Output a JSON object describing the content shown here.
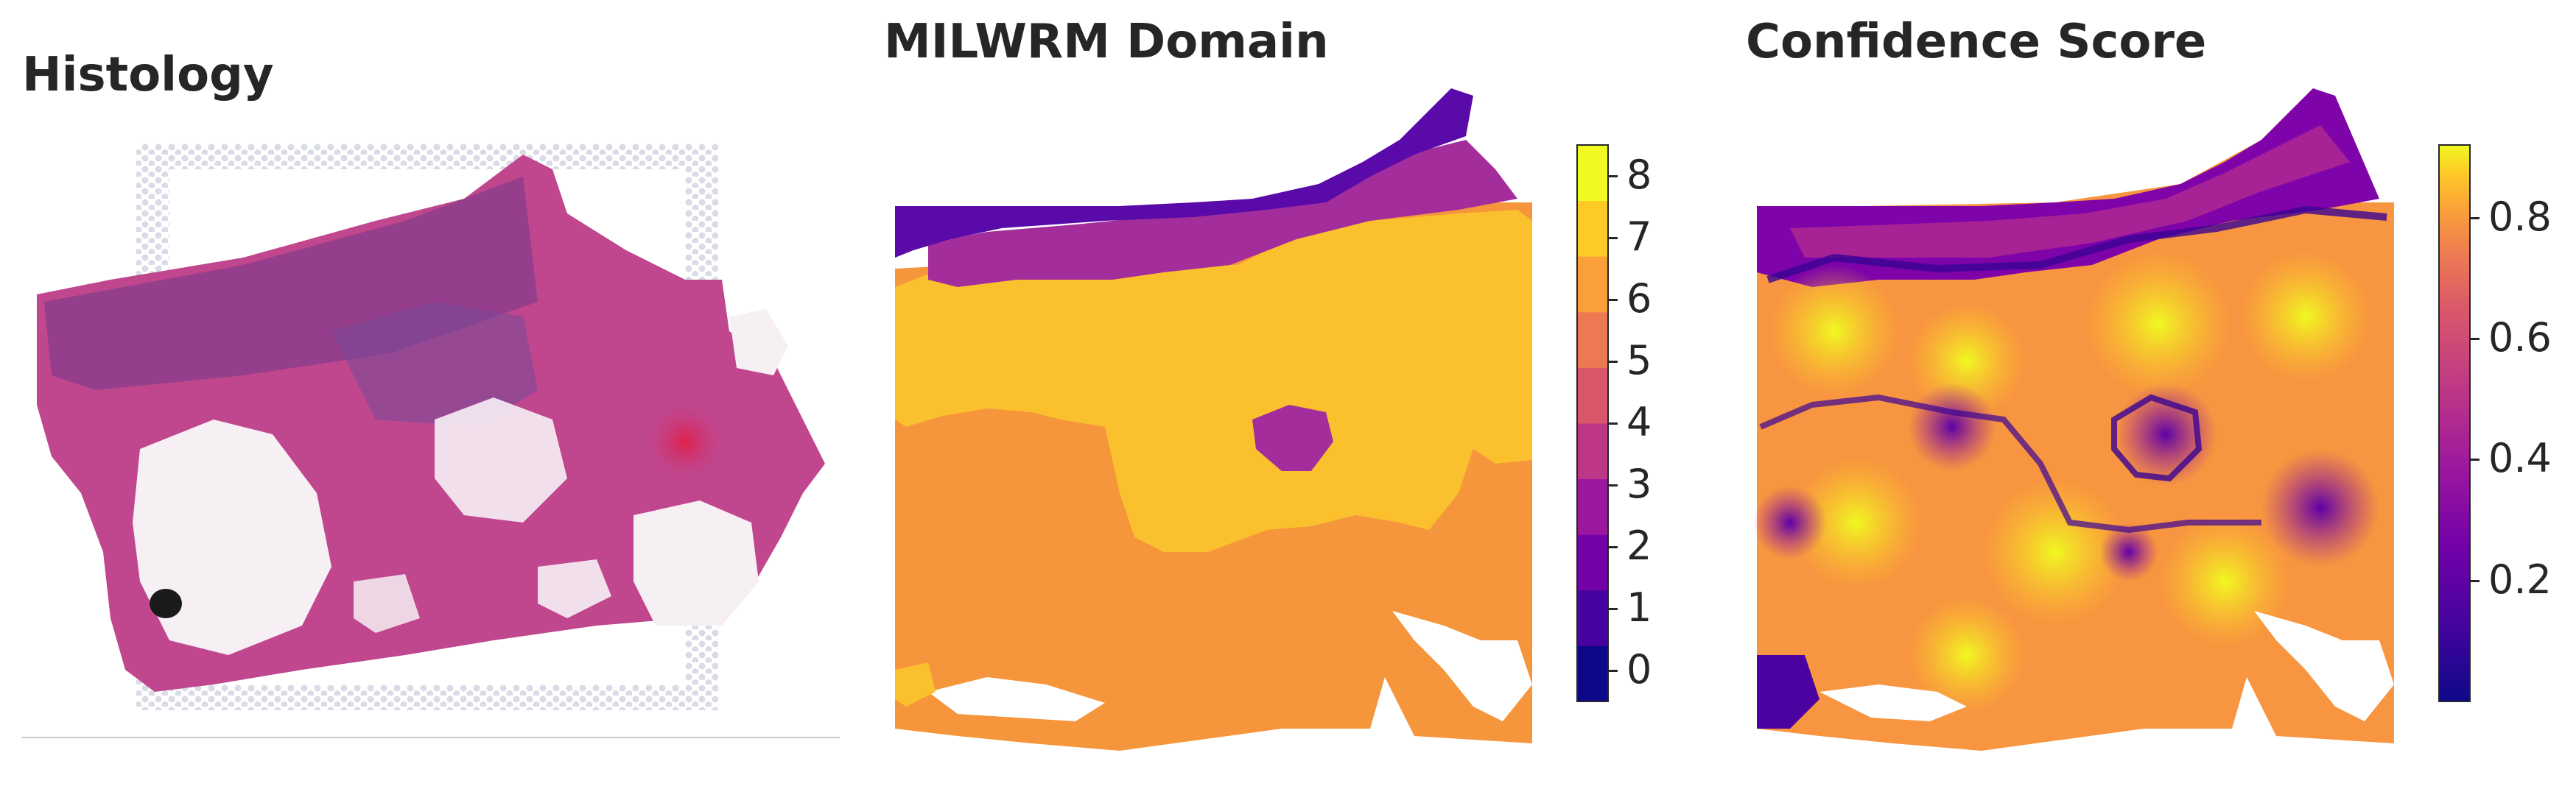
{
  "panels": [
    {
      "title": "Histology"
    },
    {
      "title": "MILWRM Domain"
    },
    {
      "title": "Confidence Score"
    }
  ],
  "domain_colorbar": {
    "ticks": [
      "0",
      "1",
      "2",
      "3",
      "4",
      "5",
      "6",
      "7",
      "8"
    ],
    "colors": [
      "#0d0887",
      "#46039f",
      "#7201a8",
      "#9c179e",
      "#bd3786",
      "#d8576b",
      "#ed7953",
      "#fb9f3a",
      "#fdca26",
      "#f0f921"
    ]
  },
  "confidence_colorbar": {
    "ticks": [
      "0.2",
      "0.4",
      "0.6",
      "0.8"
    ],
    "tick_values": [
      0.2,
      0.4,
      0.6,
      0.8
    ],
    "range": [
      0.0,
      0.92
    ]
  },
  "colors": {
    "domain_yellow": "#fbc02d",
    "domain_orange": "#f5963c",
    "domain_purple": "#a42d9c",
    "domain_dark": "#5a0aa8",
    "tissue_pink": "#c0468e",
    "tissue_purple": "#8a3c8c",
    "fat_white": "#f6f0f5"
  }
}
